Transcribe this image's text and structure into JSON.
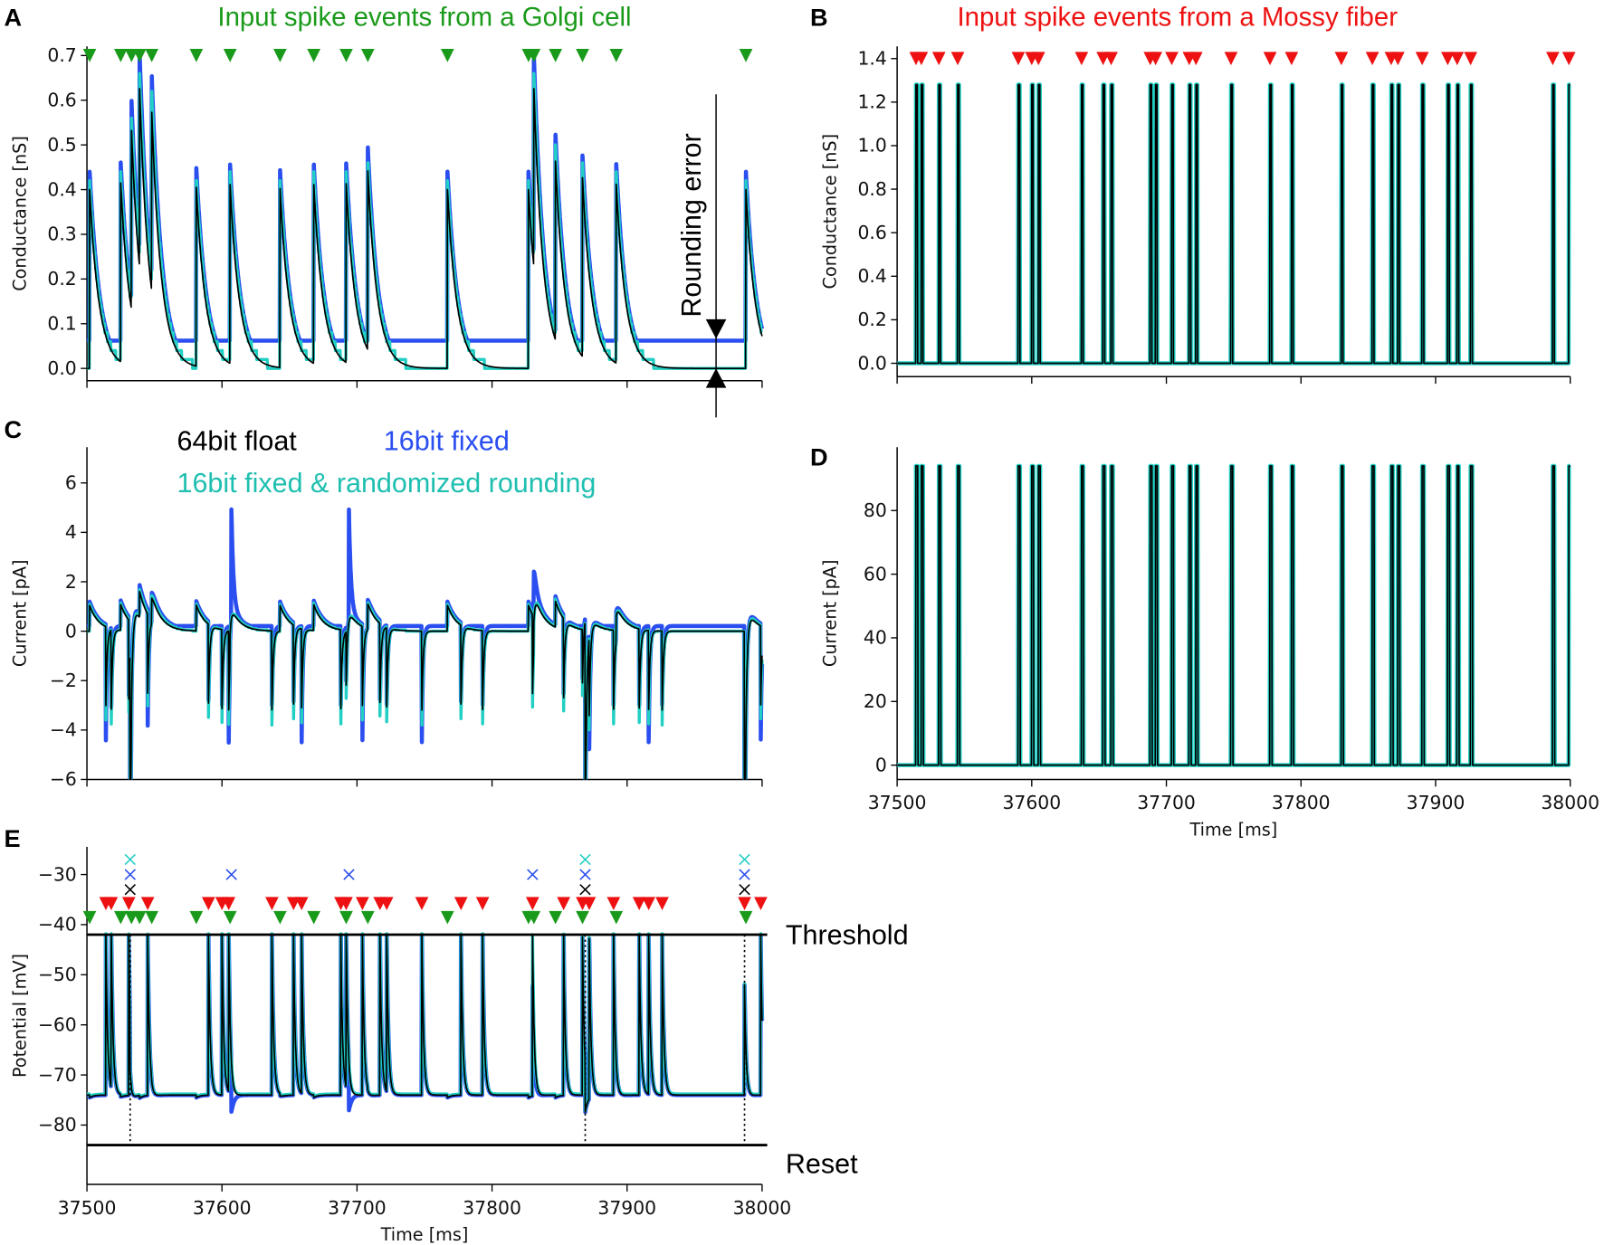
{
  "colors": {
    "float64": "#000000",
    "fixed16": "#2a4ef0",
    "fixed16_random": "#22cfc4",
    "golgi": "#1a9a1a",
    "mossy": "#ee1111"
  },
  "labels": {
    "panel_a": "A",
    "panel_b": "B",
    "panel_c": "C",
    "panel_d": "D",
    "panel_e": "E",
    "title_a": "Input spike events from a Golgi cell",
    "title_b": "Input spike events from a Mossy fiber",
    "legend_float": "64bit float",
    "legend_fixed": "16bit fixed",
    "legend_random": "16bit fixed & randomized rounding",
    "rounding_error": "Rounding error",
    "threshold": "Threshold",
    "reset": "Reset",
    "conductance": "Conductance [nS]",
    "current": "Current [pA]",
    "potential": "Potential [mV]",
    "time": "Time [ms]"
  },
  "chart_data": {
    "type": "line",
    "xlim": [
      37500,
      38000
    ],
    "x_ticks": [
      "37500",
      "37600",
      "37700",
      "37800",
      "37900",
      "38000"
    ],
    "golgi_spike_times_ms": [
      37502,
      37525,
      37533,
      37539,
      37548,
      37581,
      37606,
      37643,
      37668,
      37692,
      37708,
      37767,
      37827,
      37831,
      37847,
      37867,
      37892,
      37988
    ],
    "mossy_spike_times_ms": [
      37514,
      37518,
      37531,
      37545,
      37590,
      37600,
      37605,
      37637,
      37653,
      37659,
      37688,
      37692,
      37704,
      37717,
      37722,
      37748,
      37777,
      37793,
      37830,
      37853,
      37867,
      37872,
      37890,
      37909,
      37916,
      37926,
      37987,
      37999
    ],
    "output_spike_times_ms": {
      "64bit float": [
        37532,
        37869,
        37987
      ],
      "16bit fixed": [
        37532,
        37607,
        37694,
        37830,
        37869,
        37987
      ],
      "16bit fixed & randomized rounding": [
        37532,
        37869,
        37987
      ]
    },
    "series_names": [
      "64bit float",
      "16bit fixed",
      "16bit fixed & randomized rounding"
    ],
    "panels": [
      {
        "id": "A",
        "ylabel": "Conductance [nS]",
        "ylim": [
          -0.02,
          0.74
        ],
        "y_ticks": [
          "0.0",
          "0.1",
          "0.2",
          "0.3",
          "0.4",
          "0.5",
          "0.6",
          "0.7"
        ],
        "y_tick_values": [
          0,
          0.1,
          0.2,
          0.3,
          0.4,
          0.5,
          0.6,
          0.7
        ],
        "fixed16_floor_nS": 0.062
      },
      {
        "id": "B",
        "ylabel": "Conductance [nS]",
        "ylim": [
          -0.05,
          1.45
        ],
        "y_ticks": [
          "0.0",
          "0.2",
          "0.4",
          "0.6",
          "0.8",
          "1.0",
          "1.2",
          "1.4"
        ],
        "y_tick_values": [
          0,
          0.2,
          0.4,
          0.6,
          0.8,
          1.0,
          1.2,
          1.4
        ],
        "pulse_nS": 1.28
      },
      {
        "id": "C",
        "ylabel": "Current [pA]",
        "ylim": [
          -6,
          7.5
        ],
        "y_ticks": [
          "−6",
          "−4",
          "−2",
          "0",
          "2",
          "4",
          "6"
        ],
        "y_tick_values": [
          -6,
          -4,
          -2,
          0,
          2,
          4,
          6
        ]
      },
      {
        "id": "D",
        "ylabel": "Current [pA]",
        "xlabel": "Time [ms]",
        "ylim": [
          -4,
          98
        ],
        "y_ticks": [
          "0",
          "20",
          "40",
          "60",
          "80"
        ],
        "y_tick_values": [
          0,
          20,
          40,
          60,
          80
        ],
        "pulse_pA": 94
      },
      {
        "id": "E",
        "ylabel": "Potential [mV]",
        "xlabel": "Time [ms]",
        "ylim": [
          -85.5,
          -25
        ],
        "y_ticks": [
          "−80",
          "−70",
          "−60",
          "−50",
          "−40",
          "−30"
        ],
        "y_tick_values": [
          -80,
          -70,
          -60,
          -50,
          -40,
          -30
        ],
        "threshold_mV": -42,
        "reset_mV": -84,
        "rest_mV": -74
      }
    ]
  }
}
